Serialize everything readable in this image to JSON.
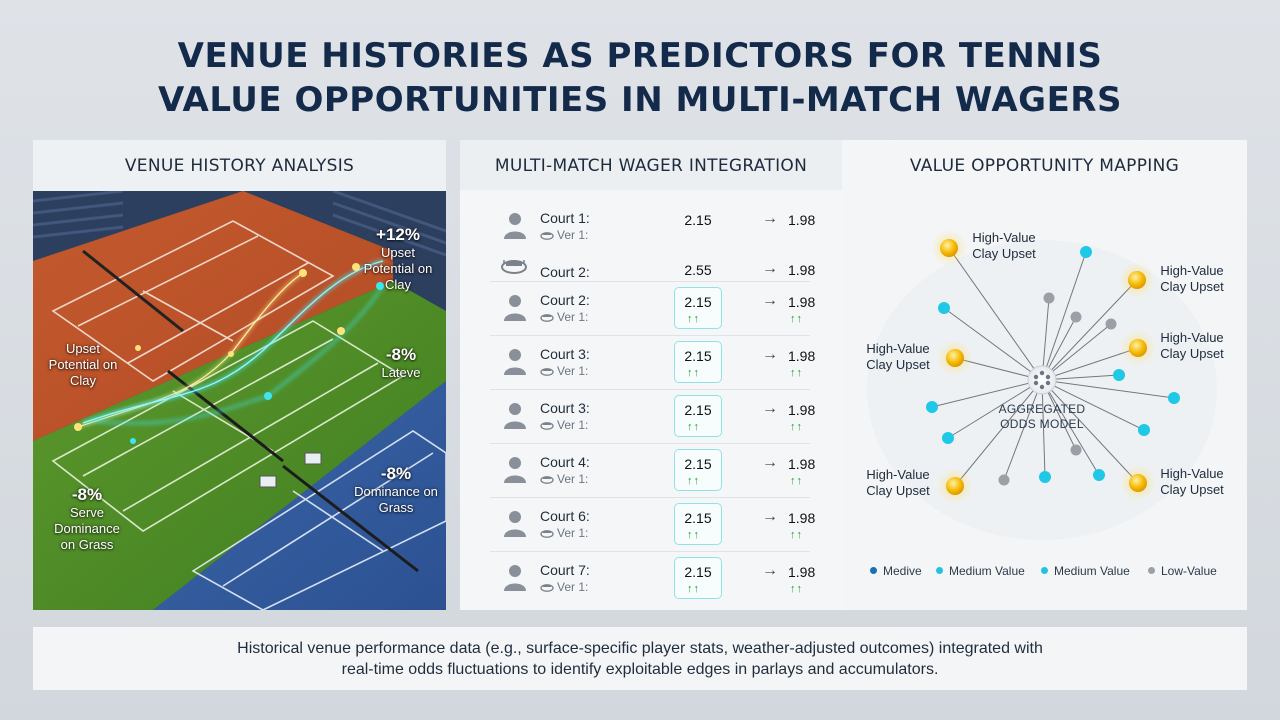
{
  "title": {
    "line1": "VENUE HISTORIES AS PREDICTORS FOR TENNIS",
    "line2": "VALUE OPPORTUNITIES IN MULTI-MATCH WAGERS"
  },
  "panel1": {
    "heading": "VENUE HISTORY ANALYSIS",
    "annotations": {
      "top_right_big": "+12%",
      "top_right_text": "Upset Potential on Clay",
      "left_text": "Upset Potential on Clay",
      "mid_right_big": "-8%",
      "mid_right_text": "Lateve",
      "bottom_left_big": "-8%",
      "bottom_left_text": "Serve Dominance on Grass",
      "bottom_right_big": "-8%",
      "bottom_right_text": "Dominance on Grass"
    }
  },
  "panel2": {
    "heading": "MULTI-MATCH WAGER INTEGRATION",
    "rows": [
      {
        "court": "Court 1:",
        "sub": "Ver 1:",
        "from": "2.15",
        "to": "1.98",
        "boxed": false,
        "icon": "person-icon"
      },
      {
        "court": "Court 2:",
        "sub": "",
        "from": "2.55",
        "to": "1.98",
        "boxed": false,
        "icon": "stadium-icon"
      },
      {
        "court": "Court 2:",
        "sub": "Ver 1:",
        "from": "2.15",
        "to": "1.98",
        "boxed": true,
        "icon": "person-icon"
      },
      {
        "court": "Court 3:",
        "sub": "Ver 1:",
        "from": "2.15",
        "to": "1.98",
        "boxed": true,
        "icon": "person-icon"
      },
      {
        "court": "Court 3:",
        "sub": "Ver 1:",
        "from": "2.15",
        "to": "1.98",
        "boxed": true,
        "icon": "person-icon"
      },
      {
        "court": "Court 4:",
        "sub": "Ver 1:",
        "from": "2.15",
        "to": "1.98",
        "boxed": true,
        "icon": "person-icon"
      },
      {
        "court": "Court 6:",
        "sub": "Ver 1:",
        "from": "2.15",
        "to": "1.98",
        "boxed": true,
        "icon": "person-icon"
      },
      {
        "court": "Court 7:",
        "sub": "Ver 1:",
        "from": "2.15",
        "to": "1.98",
        "boxed": true,
        "icon": "person-icon"
      }
    ],
    "arrow_glyph": "→",
    "trend_glyph": "↑↑"
  },
  "panel3": {
    "heading": "VALUE OPPORTUNITY MAPPING",
    "hub_label_line1": "AGGREGATED",
    "hub_label_line2": "ODDS MODEL",
    "node_labels": [
      "High-Value Clay Upset",
      "High-Value Clay Upset",
      "High-Value Clay Upset",
      "High-Value Clay Upset",
      "High-Value Clay Upset",
      "High-Value Clay Upset"
    ],
    "legend": [
      {
        "label": "Medive",
        "color": "#1a6fb5"
      },
      {
        "label": "Medium Value",
        "color": "#22c3e0"
      },
      {
        "label": "Medium Value",
        "color": "#22c3e0"
      },
      {
        "label": "Low-Value",
        "color": "#9aa0a6"
      }
    ],
    "colors": {
      "high": "#f5b800",
      "medium": "#1ec8e6",
      "low": "#9aa0a6"
    }
  },
  "footer": {
    "line1": "Historical venue performance data (e.g., surface-specific player stats, weather-adjusted outcomes) integrated with",
    "line2": "real-time odds fluctuations to identify exploitable edges in parlays and accumulators."
  }
}
